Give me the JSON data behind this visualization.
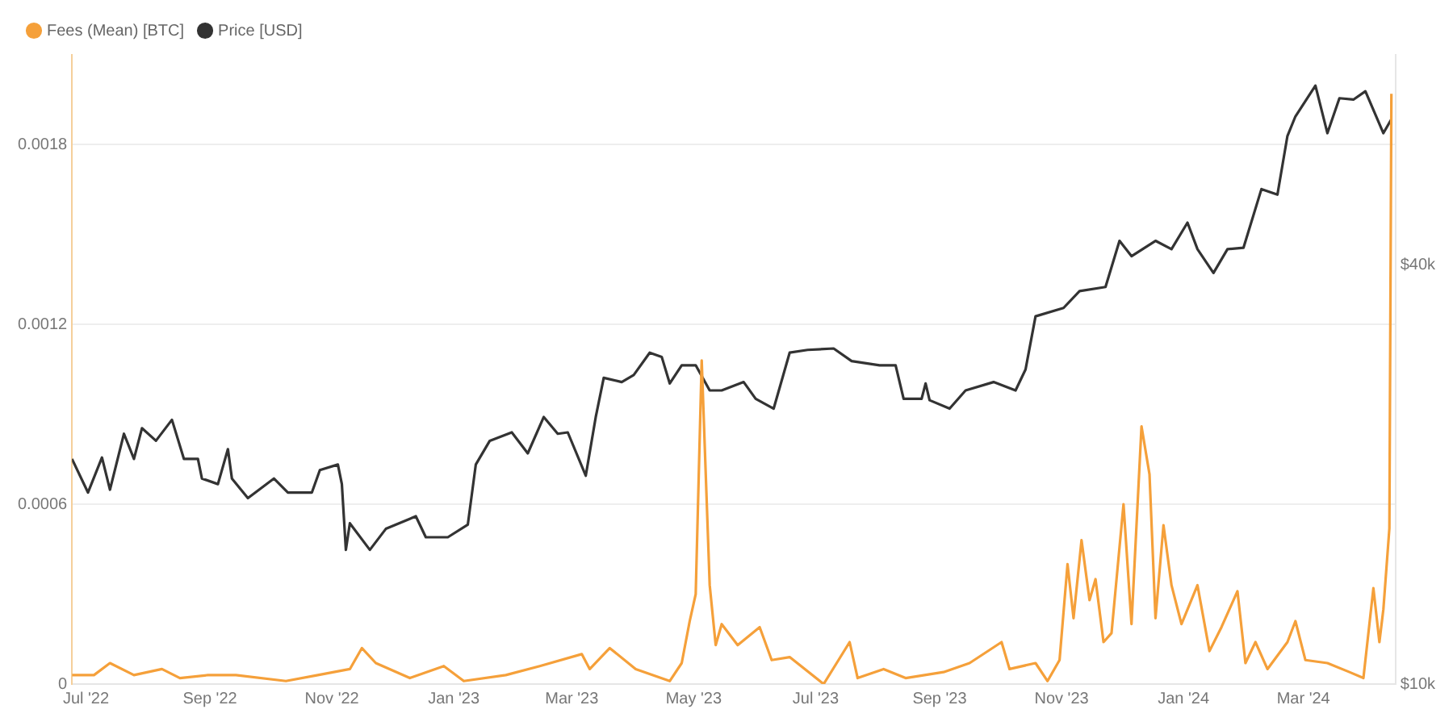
{
  "chart_data": {
    "type": "line",
    "legend": "top left",
    "grid": "y",
    "marker": "none",
    "line_style": "solid",
    "xlim": [
      "2022-06-24",
      "2024-04-16"
    ],
    "xticks": [
      {
        "value": "2022-07-01",
        "label": "Jul '22"
      },
      {
        "value": "2022-09-01",
        "label": "Sep '22"
      },
      {
        "value": "2022-11-01",
        "label": "Nov '22"
      },
      {
        "value": "2023-01-01",
        "label": "Jan '23"
      },
      {
        "value": "2023-03-01",
        "label": "Mar '23"
      },
      {
        "value": "2023-05-01",
        "label": "May '23"
      },
      {
        "value": "2023-07-01",
        "label": "Jul '23"
      },
      {
        "value": "2023-09-01",
        "label": "Sep '23"
      },
      {
        "value": "2023-11-01",
        "label": "Nov '23"
      },
      {
        "value": "2024-01-01",
        "label": "Jan '24"
      },
      {
        "value": "2024-03-01",
        "label": "Mar '24"
      }
    ],
    "ylim": [
      0,
      0.0021
    ],
    "yticks": [
      0,
      0.0006,
      0.0012,
      0.0018
    ],
    "y2lim": [
      10000,
      55000
    ],
    "y2ticks": [
      {
        "value": 10000,
        "label": "$10k"
      },
      {
        "value": 40000,
        "label": "$40k"
      }
    ],
    "series": [
      {
        "name": "Fees (Mean) [BTC]",
        "color": "#f5a03a",
        "x": [
          "2022-06-24",
          "2022-07-05",
          "2022-07-13",
          "2022-07-25",
          "2022-08-08",
          "2022-08-17",
          "2022-08-31",
          "2022-09-14",
          "2022-10-09",
          "2022-10-25",
          "2022-11-10",
          "2022-11-16",
          "2022-11-23",
          "2022-12-10",
          "2022-12-27",
          "2023-01-06",
          "2023-01-27",
          "2023-02-13",
          "2023-03-06",
          "2023-03-10",
          "2023-03-20",
          "2023-04-02",
          "2023-04-19",
          "2023-04-25",
          "2023-04-29",
          "2023-05-02",
          "2023-05-05",
          "2023-05-09",
          "2023-05-12",
          "2023-05-15",
          "2023-05-23",
          "2023-06-03",
          "2023-06-09",
          "2023-06-18",
          "2023-07-05",
          "2023-07-18",
          "2023-07-22",
          "2023-08-04",
          "2023-08-15",
          "2023-09-03",
          "2023-09-16",
          "2023-10-02",
          "2023-10-06",
          "2023-10-19",
          "2023-10-25",
          "2023-10-31",
          "2023-11-04",
          "2023-11-07",
          "2023-11-11",
          "2023-11-15",
          "2023-11-18",
          "2023-11-22",
          "2023-11-26",
          "2023-12-02",
          "2023-12-06",
          "2023-12-11",
          "2023-12-15",
          "2023-12-18",
          "2023-12-22",
          "2023-12-26",
          "2023-12-31",
          "2024-01-08",
          "2024-01-14",
          "2024-01-20",
          "2024-01-28",
          "2024-02-01",
          "2024-02-06",
          "2024-02-12",
          "2024-02-22",
          "2024-02-26",
          "2024-03-02",
          "2024-03-13",
          "2024-03-24",
          "2024-03-31",
          "2024-04-05",
          "2024-04-08",
          "2024-04-10",
          "2024-04-13",
          "2024-04-14"
        ],
        "values": [
          3e-05,
          3e-05,
          7e-05,
          3e-05,
          5e-05,
          2e-05,
          3e-05,
          3e-05,
          1e-05,
          3e-05,
          5e-05,
          0.00012,
          7e-05,
          2e-05,
          6e-05,
          1e-05,
          3e-05,
          6e-05,
          0.0001,
          5e-05,
          0.00012,
          5e-05,
          1e-05,
          7e-05,
          0.00021,
          0.0003,
          0.00108,
          0.00033,
          0.00013,
          0.0002,
          0.00013,
          0.00019,
          8e-05,
          9e-05,
          0.0,
          0.00014,
          2e-05,
          5e-05,
          2e-05,
          4e-05,
          7e-05,
          0.00014,
          5e-05,
          7e-05,
          1e-05,
          8e-05,
          0.0004,
          0.00022,
          0.00048,
          0.00028,
          0.00035,
          0.00014,
          0.00017,
          0.0006,
          0.0002,
          0.00086,
          0.0007,
          0.00022,
          0.00053,
          0.00033,
          0.0002,
          0.00033,
          0.00011,
          0.00019,
          0.00031,
          7e-05,
          0.00014,
          5e-05,
          0.00014,
          0.00021,
          8e-05,
          7e-05,
          4e-05,
          2e-05,
          0.00032,
          0.00014,
          0.00025,
          0.00052,
          0.00197
        ]
      },
      {
        "name": "Price [USD]",
        "color": "#333333",
        "axis": "y2",
        "x": [
          "2022-06-24",
          "2022-07-02",
          "2022-07-09",
          "2022-07-13",
          "2022-07-20",
          "2022-07-25",
          "2022-07-29",
          "2022-08-05",
          "2022-08-13",
          "2022-08-19",
          "2022-08-26",
          "2022-08-28",
          "2022-09-05",
          "2022-09-10",
          "2022-09-12",
          "2022-09-20",
          "2022-10-03",
          "2022-10-10",
          "2022-10-22",
          "2022-10-26",
          "2022-11-04",
          "2022-11-06",
          "2022-11-08",
          "2022-11-10",
          "2022-11-20",
          "2022-11-28",
          "2022-12-13",
          "2022-12-18",
          "2022-12-29",
          "2023-01-08",
          "2023-01-12",
          "2023-01-19",
          "2023-01-30",
          "2023-02-07",
          "2023-02-15",
          "2023-02-22",
          "2023-02-27",
          "2023-03-08",
          "2023-03-13",
          "2023-03-17",
          "2023-03-26",
          "2023-04-01",
          "2023-04-09",
          "2023-04-15",
          "2023-04-19",
          "2023-04-25",
          "2023-05-02",
          "2023-05-09",
          "2023-05-15",
          "2023-05-26",
          "2023-06-01",
          "2023-06-10",
          "2023-06-18",
          "2023-06-27",
          "2023-07-10",
          "2023-07-19",
          "2023-08-02",
          "2023-08-10",
          "2023-08-14",
          "2023-08-23",
          "2023-08-25",
          "2023-08-27",
          "2023-09-06",
          "2023-09-14",
          "2023-09-28",
          "2023-10-09",
          "2023-10-14",
          "2023-10-19",
          "2023-11-02",
          "2023-11-10",
          "2023-11-23",
          "2023-11-30",
          "2023-12-06",
          "2023-12-18",
          "2023-12-26",
          "2024-01-03",
          "2024-01-08",
          "2024-01-16",
          "2024-01-23",
          "2024-01-31",
          "2024-02-09",
          "2024-02-17",
          "2024-02-22",
          "2024-02-26",
          "2024-03-07",
          "2024-03-13",
          "2024-03-19",
          "2024-03-26",
          "2024-04-01",
          "2024-04-10",
          "2024-04-14"
        ],
        "values": [
          26100,
          23700,
          26200,
          23900,
          27900,
          26100,
          28300,
          27400,
          28900,
          26100,
          26100,
          24700,
          24300,
          26800,
          24700,
          23300,
          24700,
          23700,
          23700,
          25300,
          25700,
          24300,
          19600,
          21500,
          19600,
          21100,
          22000,
          20500,
          20500,
          21400,
          25700,
          27400,
          28000,
          26500,
          29100,
          27900,
          28000,
          24900,
          29100,
          31900,
          31600,
          32100,
          33700,
          33400,
          31500,
          32800,
          32800,
          31000,
          31000,
          31600,
          30400,
          29700,
          33700,
          33900,
          34000,
          33100,
          32800,
          32800,
          30400,
          30400,
          31500,
          30300,
          29700,
          31000,
          31600,
          31000,
          32500,
          36300,
          36900,
          38100,
          38400,
          41700,
          40600,
          41700,
          41100,
          43000,
          41100,
          39400,
          41100,
          41200,
          45400,
          45000,
          49200,
          50600,
          52800,
          49400,
          51900,
          51800,
          52400,
          49400,
          50400
        ]
      }
    ]
  }
}
